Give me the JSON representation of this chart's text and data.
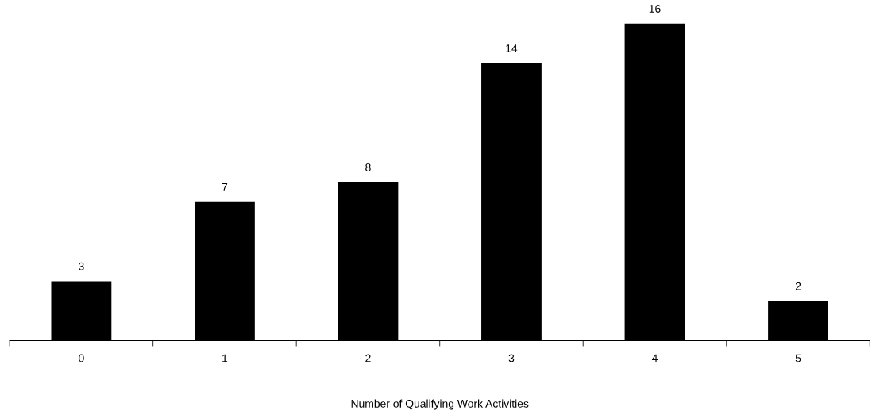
{
  "chart_data": {
    "type": "bar",
    "xlabel": "Number of Qualifying Work Activities",
    "categories": [
      "0",
      "1",
      "2",
      "3",
      "4",
      "5"
    ],
    "values": [
      3,
      7,
      8,
      14,
      16,
      2
    ],
    "color": "#000000",
    "data_labels": true,
    "grid": false,
    "legend": false
  }
}
